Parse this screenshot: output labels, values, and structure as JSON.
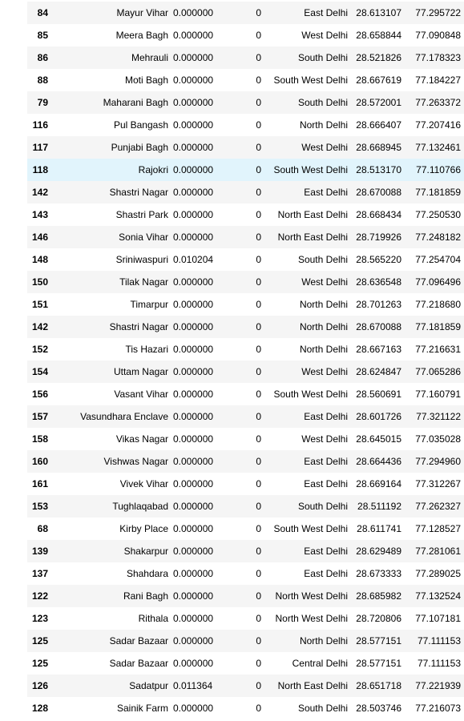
{
  "highlight_index": 7,
  "rows": [
    {
      "idx": "84",
      "name": "Mayur Vihar",
      "val": "0.000000",
      "cnt": "0",
      "dist": "East Delhi",
      "lat": "28.613107",
      "lon": "77.295722"
    },
    {
      "idx": "85",
      "name": "Meera Bagh",
      "val": "0.000000",
      "cnt": "0",
      "dist": "West Delhi",
      "lat": "28.658844",
      "lon": "77.090848"
    },
    {
      "idx": "86",
      "name": "Mehrauli",
      "val": "0.000000",
      "cnt": "0",
      "dist": "South Delhi",
      "lat": "28.521826",
      "lon": "77.178323"
    },
    {
      "idx": "88",
      "name": "Moti Bagh",
      "val": "0.000000",
      "cnt": "0",
      "dist": "South West Delhi",
      "lat": "28.667619",
      "lon": "77.184227"
    },
    {
      "idx": "79",
      "name": "Maharani Bagh",
      "val": "0.000000",
      "cnt": "0",
      "dist": "South Delhi",
      "lat": "28.572001",
      "lon": "77.263372"
    },
    {
      "idx": "116",
      "name": "Pul Bangash",
      "val": "0.000000",
      "cnt": "0",
      "dist": "North Delhi",
      "lat": "28.666407",
      "lon": "77.207416"
    },
    {
      "idx": "117",
      "name": "Punjabi Bagh",
      "val": "0.000000",
      "cnt": "0",
      "dist": "West Delhi",
      "lat": "28.668945",
      "lon": "77.132461"
    },
    {
      "idx": "118",
      "name": "Rajokri",
      "val": "0.000000",
      "cnt": "0",
      "dist": "South West Delhi",
      "lat": "28.513170",
      "lon": "77.110766"
    },
    {
      "idx": "142",
      "name": "Shastri Nagar",
      "val": "0.000000",
      "cnt": "0",
      "dist": "East Delhi",
      "lat": "28.670088",
      "lon": "77.181859"
    },
    {
      "idx": "143",
      "name": "Shastri Park",
      "val": "0.000000",
      "cnt": "0",
      "dist": "North East Delhi",
      "lat": "28.668434",
      "lon": "77.250530"
    },
    {
      "idx": "146",
      "name": "Sonia Vihar",
      "val": "0.000000",
      "cnt": "0",
      "dist": "North East Delhi",
      "lat": "28.719926",
      "lon": "77.248182"
    },
    {
      "idx": "148",
      "name": "Sriniwaspuri",
      "val": "0.010204",
      "cnt": "0",
      "dist": "South Delhi",
      "lat": "28.565220",
      "lon": "77.254704"
    },
    {
      "idx": "150",
      "name": "Tilak Nagar",
      "val": "0.000000",
      "cnt": "0",
      "dist": "West Delhi",
      "lat": "28.636548",
      "lon": "77.096496"
    },
    {
      "idx": "151",
      "name": "Timarpur",
      "val": "0.000000",
      "cnt": "0",
      "dist": "North Delhi",
      "lat": "28.701263",
      "lon": "77.218680"
    },
    {
      "idx": "142",
      "name": "Shastri Nagar",
      "val": "0.000000",
      "cnt": "0",
      "dist": "North Delhi",
      "lat": "28.670088",
      "lon": "77.181859"
    },
    {
      "idx": "152",
      "name": "Tis Hazari",
      "val": "0.000000",
      "cnt": "0",
      "dist": "North Delhi",
      "lat": "28.667163",
      "lon": "77.216631"
    },
    {
      "idx": "154",
      "name": "Uttam Nagar",
      "val": "0.000000",
      "cnt": "0",
      "dist": "West Delhi",
      "lat": "28.624847",
      "lon": "77.065286"
    },
    {
      "idx": "156",
      "name": "Vasant Vihar",
      "val": "0.000000",
      "cnt": "0",
      "dist": "South West Delhi",
      "lat": "28.560691",
      "lon": "77.160791"
    },
    {
      "idx": "157",
      "name": "Vasundhara Enclave",
      "val": "0.000000",
      "cnt": "0",
      "dist": "East Delhi",
      "lat": "28.601726",
      "lon": "77.321122"
    },
    {
      "idx": "158",
      "name": "Vikas Nagar",
      "val": "0.000000",
      "cnt": "0",
      "dist": "West Delhi",
      "lat": "28.645015",
      "lon": "77.035028"
    },
    {
      "idx": "160",
      "name": "Vishwas Nagar",
      "val": "0.000000",
      "cnt": "0",
      "dist": "East Delhi",
      "lat": "28.664436",
      "lon": "77.294960"
    },
    {
      "idx": "161",
      "name": "Vivek Vihar",
      "val": "0.000000",
      "cnt": "0",
      "dist": "East Delhi",
      "lat": "28.669164",
      "lon": "77.312267"
    },
    {
      "idx": "153",
      "name": "Tughlaqabad",
      "val": "0.000000",
      "cnt": "0",
      "dist": "South Delhi",
      "lat": "28.511192",
      "lon": "77.262327"
    },
    {
      "idx": "68",
      "name": "Kirby Place",
      "val": "0.000000",
      "cnt": "0",
      "dist": "South West Delhi",
      "lat": "28.611741",
      "lon": "77.128527"
    },
    {
      "idx": "139",
      "name": "Shakarpur",
      "val": "0.000000",
      "cnt": "0",
      "dist": "East Delhi",
      "lat": "28.629489",
      "lon": "77.281061"
    },
    {
      "idx": "137",
      "name": "Shahdara",
      "val": "0.000000",
      "cnt": "0",
      "dist": "East Delhi",
      "lat": "28.673333",
      "lon": "77.289025"
    },
    {
      "idx": "122",
      "name": "Rani Bagh",
      "val": "0.000000",
      "cnt": "0",
      "dist": "North West Delhi",
      "lat": "28.685982",
      "lon": "77.132524"
    },
    {
      "idx": "123",
      "name": "Rithala",
      "val": "0.000000",
      "cnt": "0",
      "dist": "North West Delhi",
      "lat": "28.720806",
      "lon": "77.107181"
    },
    {
      "idx": "125",
      "name": "Sadar Bazaar",
      "val": "0.000000",
      "cnt": "0",
      "dist": "North Delhi",
      "lat": "28.577151",
      "lon": "77.111153"
    },
    {
      "idx": "125",
      "name": "Sadar Bazaar",
      "val": "0.000000",
      "cnt": "0",
      "dist": "Central Delhi",
      "lat": "28.577151",
      "lon": "77.111153"
    },
    {
      "idx": "126",
      "name": "Sadatpur",
      "val": "0.011364",
      "cnt": "0",
      "dist": "North East Delhi",
      "lat": "28.651718",
      "lon": "77.221939"
    },
    {
      "idx": "128",
      "name": "Sainik Farm",
      "val": "0.000000",
      "cnt": "0",
      "dist": "South Delhi",
      "lat": "28.503746",
      "lon": "77.216073"
    }
  ],
  "colors": {
    "row_striped": "#f5f5f5",
    "row_plain": "#ffffff",
    "row_hover": "#e1f4fc"
  }
}
